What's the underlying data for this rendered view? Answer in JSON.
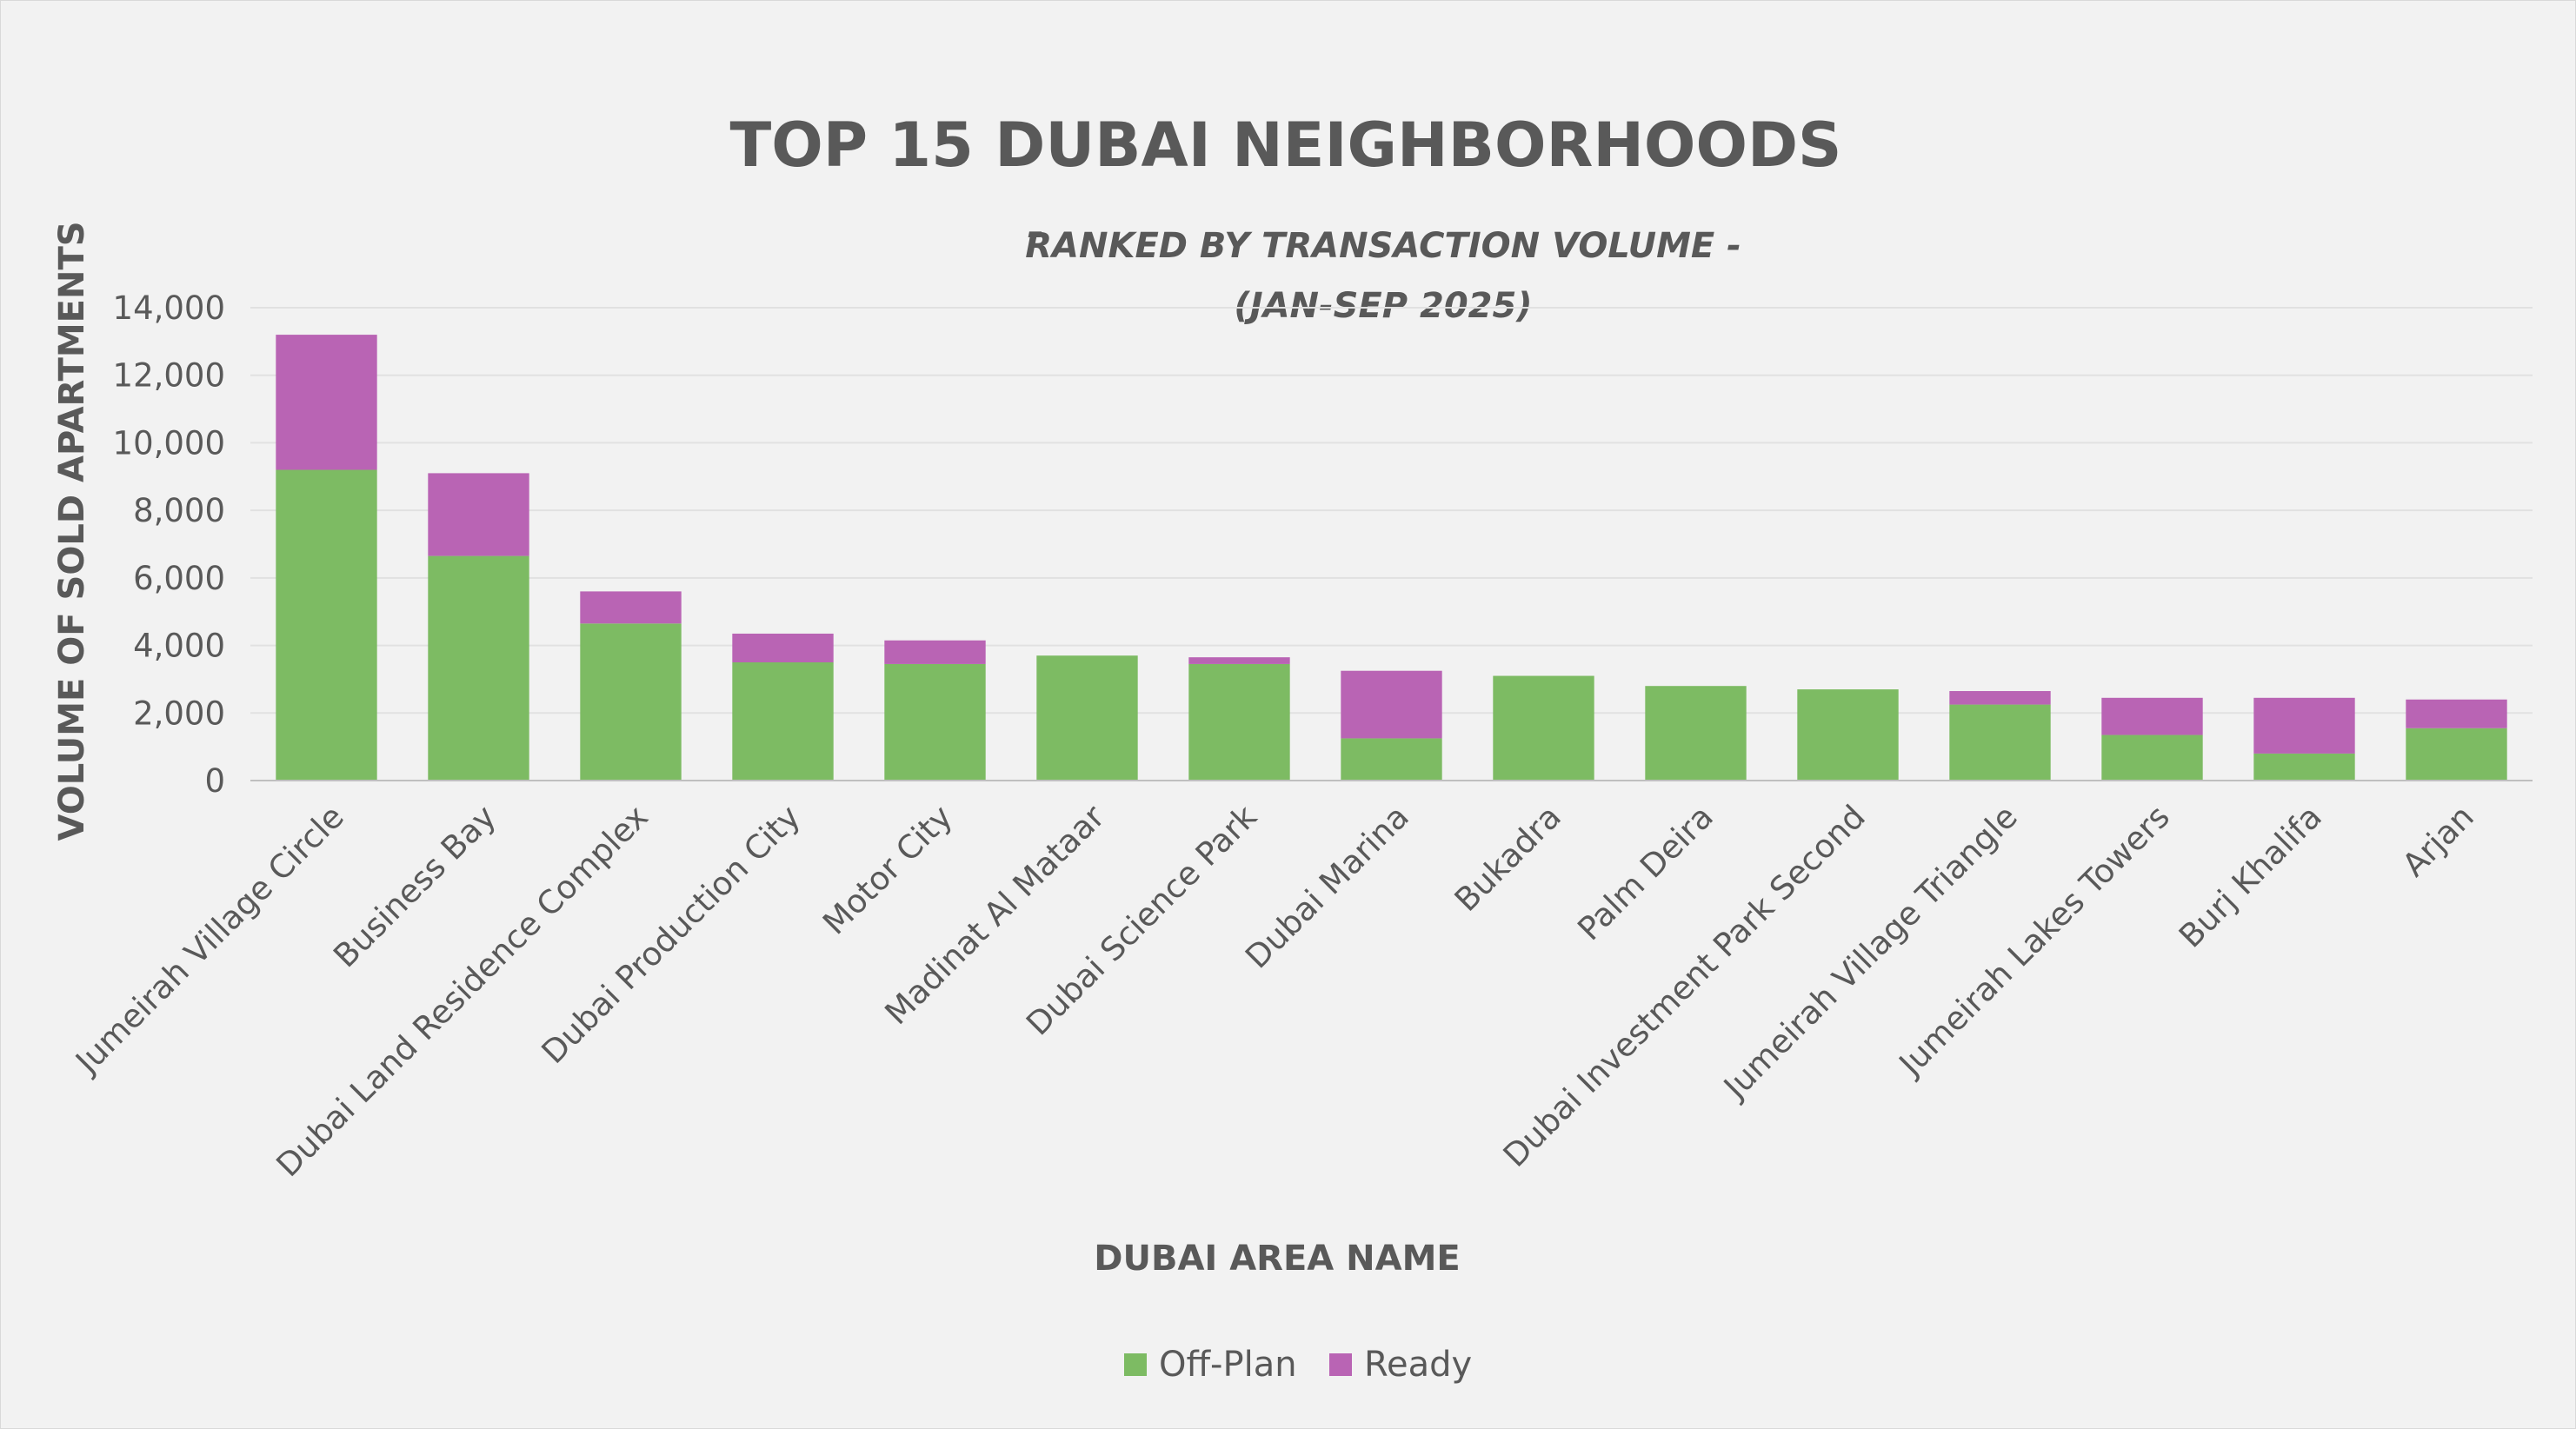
{
  "chart_data": {
    "type": "bar",
    "stacked": true,
    "title": "TOP 15 DUBAI NEIGHBORHOODS",
    "subtitle_dash": "-",
    "subtitle_line1": "RANKED BY TRANSACTION VOLUME -",
    "subtitle_line2": "(JAN-SEP 2025)",
    "xlabel": "DUBAI AREA NAME",
    "ylabel": "VOLUME OF SOLD APARTMENTS",
    "ylim": [
      0,
      14000
    ],
    "yticks": [
      "0",
      "2,000",
      "4,000",
      "6,000",
      "8,000",
      "10,000",
      "12,000",
      "14,000"
    ],
    "ytick_values": [
      0,
      2000,
      4000,
      6000,
      8000,
      10000,
      12000,
      14000
    ],
    "grid": true,
    "legend_position": "bottom",
    "categories": [
      "Jumeirah Village Circle",
      "Business Bay",
      "Dubai Land Residence Complex",
      "Dubai Production City",
      "Motor City",
      "Madinat Al Mataar",
      "Dubai Science Park",
      "Dubai Marina",
      "Bukadra",
      "Palm Deira",
      "Dubai Investment Park Second",
      "Jumeirah Village Triangle",
      "Jumeirah Lakes Towers",
      "Burj Khalifa",
      "Arjan"
    ],
    "series": [
      {
        "name": "Off-Plan",
        "color": "#7dbb63",
        "values": [
          9200,
          6650,
          4650,
          3500,
          3450,
          3700,
          3450,
          1250,
          3100,
          2800,
          2700,
          2250,
          1350,
          800,
          1550
        ]
      },
      {
        "name": "Ready",
        "color": "#b964b4",
        "values": [
          4000,
          2450,
          950,
          850,
          700,
          0,
          200,
          2000,
          0,
          0,
          0,
          400,
          1100,
          1650,
          850
        ]
      }
    ]
  }
}
